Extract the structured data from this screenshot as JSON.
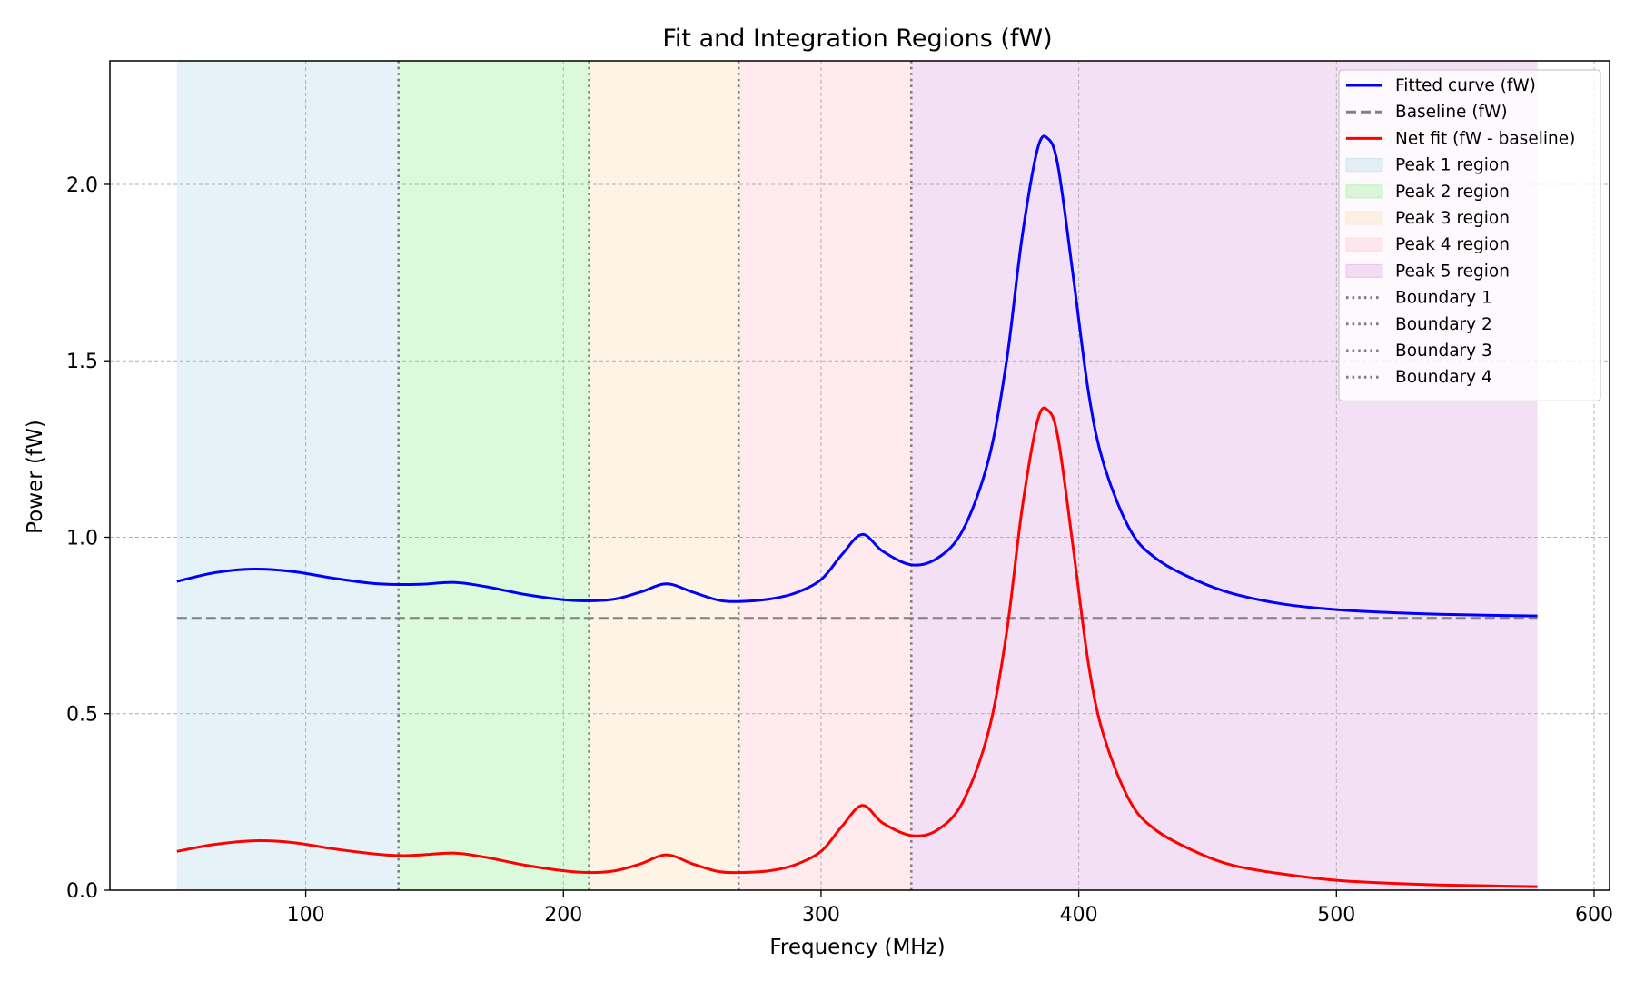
{
  "chart_data": {
    "type": "line",
    "title": "Fit and Integration Regions (fW)",
    "xlabel": "Frequency (MHz)",
    "ylabel": "Power (fW)",
    "xlim": [
      24,
      606
    ],
    "ylim": [
      0,
      2.35
    ],
    "xticks": [
      100,
      200,
      300,
      400,
      500,
      600
    ],
    "xtick_labels": [
      "100",
      "200",
      "300",
      "400",
      "500",
      "600"
    ],
    "yticks": [
      0.0,
      0.5,
      1.0,
      1.5,
      2.0
    ],
    "ytick_labels": [
      "0.0",
      "0.5",
      "1.0",
      "1.5",
      "2.0"
    ],
    "grid": true,
    "legend_position": "upper right",
    "baseline": 0.77,
    "x_range": [
      50,
      578
    ],
    "regions": [
      {
        "name": "Peak 1 region",
        "x0": 50,
        "x1": 136,
        "color": "#add8e6"
      },
      {
        "name": "Peak 2 region",
        "x0": 136,
        "x1": 210,
        "color": "#90ee90"
      },
      {
        "name": "Peak 3 region",
        "x0": 210,
        "x1": 268,
        "color": "#fddcb0"
      },
      {
        "name": "Peak 4 region",
        "x0": 268,
        "x1": 335,
        "color": "#ffc0cb"
      },
      {
        "name": "Peak 5 region",
        "x0": 335,
        "x1": 578,
        "color": "#dda0dd"
      }
    ],
    "boundaries": [
      {
        "name": "Boundary 1",
        "x": 136
      },
      {
        "name": "Boundary 2",
        "x": 210
      },
      {
        "name": "Boundary 3",
        "x": 268
      },
      {
        "name": "Boundary 4",
        "x": 335
      }
    ],
    "series": [
      {
        "name": "Fitted curve (fW)",
        "color": "#0000ff",
        "style": "solid",
        "x": [
          50,
          65,
          80,
          95,
          110,
          125,
          136,
          145,
          158,
          170,
          185,
          200,
          210,
          220,
          230,
          240,
          250,
          260,
          268,
          280,
          290,
          300,
          308,
          316,
          324,
          335,
          345,
          355,
          365,
          372,
          378,
          384,
          388,
          392,
          398,
          404,
          410,
          420,
          430,
          445,
          460,
          480,
          500,
          520,
          540,
          560,
          578
        ],
        "y": [
          0.875,
          0.9,
          0.91,
          0.903,
          0.885,
          0.87,
          0.866,
          0.867,
          0.872,
          0.86,
          0.838,
          0.823,
          0.82,
          0.825,
          0.845,
          0.868,
          0.845,
          0.822,
          0.818,
          0.825,
          0.842,
          0.88,
          0.95,
          1.008,
          0.96,
          0.922,
          0.94,
          1.02,
          1.22,
          1.5,
          1.85,
          2.1,
          2.13,
          2.05,
          1.73,
          1.4,
          1.2,
          1.02,
          0.94,
          0.88,
          0.84,
          0.81,
          0.795,
          0.787,
          0.782,
          0.779,
          0.777
        ]
      },
      {
        "name": "Baseline (fW)",
        "color": "#808080",
        "style": "dashed",
        "x": [
          50,
          578
        ],
        "y": [
          0.77,
          0.77
        ]
      },
      {
        "name": "Net fit (fW - baseline)",
        "color": "#ff0000",
        "style": "solid",
        "x": [
          50,
          65,
          80,
          95,
          110,
          125,
          136,
          145,
          158,
          170,
          185,
          200,
          210,
          220,
          230,
          240,
          250,
          260,
          268,
          280,
          290,
          300,
          308,
          316,
          324,
          335,
          345,
          355,
          365,
          372,
          378,
          384,
          388,
          392,
          398,
          404,
          410,
          420,
          430,
          445,
          460,
          480,
          500,
          520,
          540,
          560,
          578
        ],
        "y": [
          0.11,
          0.13,
          0.14,
          0.135,
          0.118,
          0.104,
          0.098,
          0.1,
          0.105,
          0.093,
          0.071,
          0.055,
          0.05,
          0.055,
          0.075,
          0.1,
          0.075,
          0.053,
          0.05,
          0.055,
          0.072,
          0.11,
          0.18,
          0.24,
          0.19,
          0.155,
          0.17,
          0.25,
          0.45,
          0.73,
          1.08,
          1.33,
          1.36,
          1.28,
          0.96,
          0.63,
          0.43,
          0.25,
          0.17,
          0.11,
          0.07,
          0.045,
          0.028,
          0.02,
          0.015,
          0.012,
          0.01
        ]
      }
    ]
  }
}
